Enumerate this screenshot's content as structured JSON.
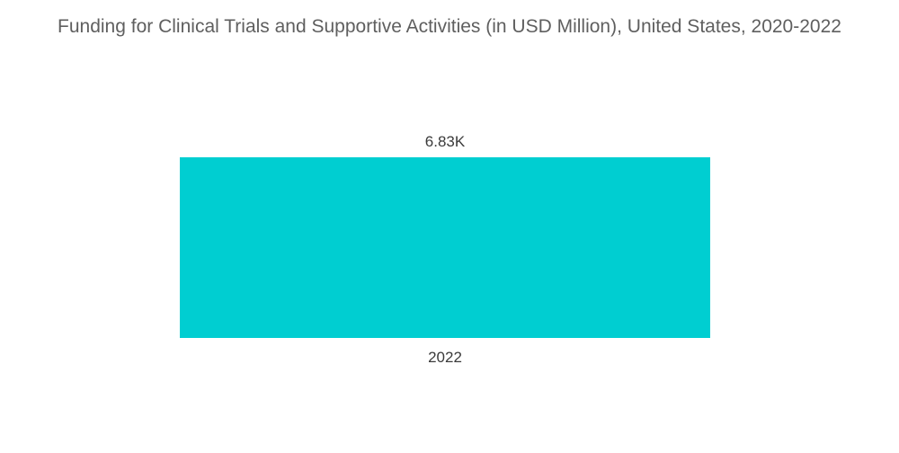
{
  "chart_data": {
    "type": "bar",
    "title": "Funding for Clinical Trials and Supportive Activities (in USD Million), United States, 2020-2022",
    "categories": [
      "2022"
    ],
    "values": [
      6830
    ],
    "data_labels": [
      "6.83K"
    ],
    "xlabel": "",
    "ylabel": "",
    "ylim": [
      0,
      6830
    ],
    "grid": false,
    "legend": "none",
    "bar_color": "#00CED1"
  }
}
